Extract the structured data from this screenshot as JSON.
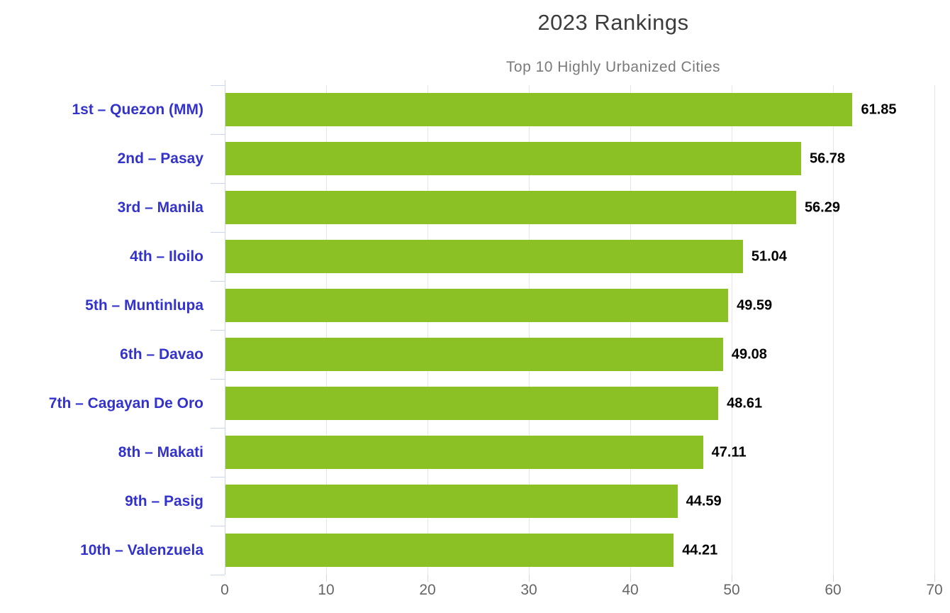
{
  "chart": {
    "title": "2023 Rankings",
    "subtitle": "Top 10 Highly Urbanized Cities"
  },
  "chart_data": {
    "type": "bar",
    "orientation": "horizontal",
    "title": "2023 Rankings",
    "subtitle": "Top 10 Highly Urbanized Cities",
    "categories": [
      "1st – Quezon (MM)",
      "2nd – Pasay",
      "3rd – Manila",
      "4th – Iloilo",
      "5th – Muntinlupa",
      "6th – Davao",
      "7th – Cagayan De Oro",
      "8th – Makati",
      "9th – Pasig",
      "10th – Valenzuela"
    ],
    "values": [
      61.85,
      56.78,
      56.29,
      51.04,
      49.59,
      49.08,
      48.61,
      47.11,
      44.59,
      44.21
    ],
    "value_labels": [
      "61.85",
      "56.78",
      "56.29",
      "51.04",
      "49.59",
      "49.08",
      "48.61",
      "47.11",
      "44.59",
      "44.21"
    ],
    "xlim": [
      0,
      70
    ],
    "x_ticks": [
      0,
      10,
      20,
      30,
      40,
      50,
      60,
      70
    ],
    "x_tick_labels": [
      "0",
      "10",
      "20",
      "30",
      "40",
      "50",
      "60",
      "70"
    ],
    "xlabel": "",
    "ylabel": "",
    "grid": true,
    "legend": "none",
    "colors": {
      "bar": "#8bc125",
      "category_label": "#3333cc",
      "value_label": "#000000",
      "title": "#3c3c3c",
      "subtitle": "#7a7a7a",
      "axis_line": "#ccd6eb",
      "gridline": "#e6e6e6",
      "x_tick": "#d8d8d8",
      "x_tick_label": "#666666"
    }
  }
}
